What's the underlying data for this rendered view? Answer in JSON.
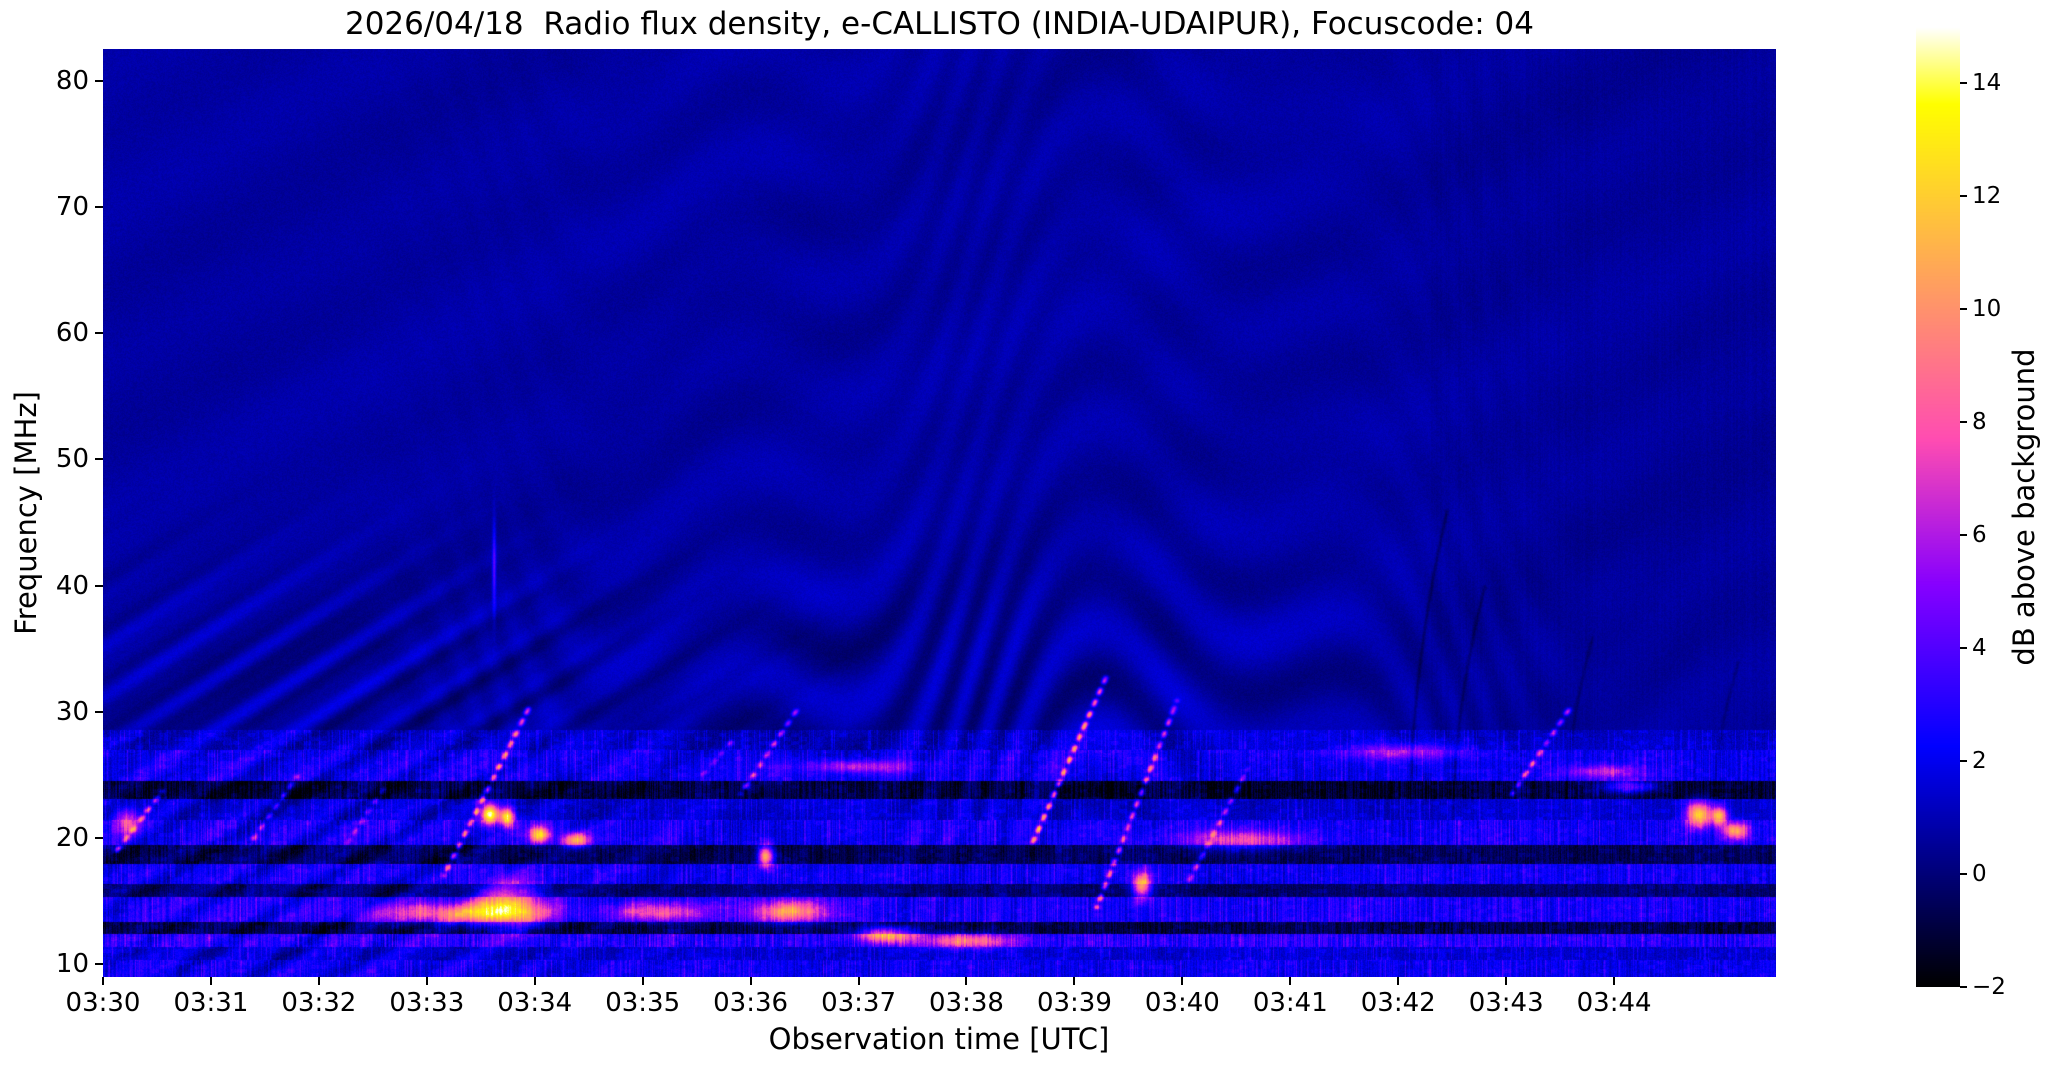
{
  "figure": {
    "background": "#ffffff",
    "text_color": "#000000"
  },
  "chart_data": {
    "type": "heatmap",
    "title": "2026/04/18  Radio flux density, e-CALLISTO (INDIA-UDAIPUR), Focuscode: 04",
    "xlabel": "Observation time [UTC]",
    "ylabel": "Frequency [MHz]",
    "colorbar_label": "dB above background",
    "x_range_minutes": [
      0,
      15.5
    ],
    "x_start_label": "03:30",
    "y_range_mhz": [
      9.0,
      82.5
    ],
    "grid": false,
    "legend": "colorbar-right",
    "x_ticks": [
      {
        "minute": 0,
        "label": "03:30"
      },
      {
        "minute": 1,
        "label": "03:31"
      },
      {
        "minute": 2,
        "label": "03:32"
      },
      {
        "minute": 3,
        "label": "03:33"
      },
      {
        "minute": 4,
        "label": "03:34"
      },
      {
        "minute": 5,
        "label": "03:35"
      },
      {
        "minute": 6,
        "label": "03:36"
      },
      {
        "minute": 7,
        "label": "03:37"
      },
      {
        "minute": 8,
        "label": "03:38"
      },
      {
        "minute": 9,
        "label": "03:39"
      },
      {
        "minute": 10,
        "label": "03:40"
      },
      {
        "minute": 11,
        "label": "03:41"
      },
      {
        "minute": 12,
        "label": "03:42"
      },
      {
        "minute": 13,
        "label": "03:43"
      },
      {
        "minute": 14,
        "label": "03:44"
      }
    ],
    "y_ticks": [
      {
        "mhz": 80,
        "label": "80"
      },
      {
        "mhz": 70,
        "label": "70"
      },
      {
        "mhz": 60,
        "label": "60"
      },
      {
        "mhz": 50,
        "label": "50"
      },
      {
        "mhz": 40,
        "label": "40"
      },
      {
        "mhz": 30,
        "label": "30"
      },
      {
        "mhz": 20,
        "label": "20"
      },
      {
        "mhz": 10,
        "label": "10"
      }
    ],
    "color_scale": {
      "colormap": "gnuplot2",
      "vmin": -2,
      "vmax": 15,
      "ticks": [
        {
          "db": -2,
          "label": "−2"
        },
        {
          "db": 0,
          "label": "0"
        },
        {
          "db": 2,
          "label": "2"
        },
        {
          "db": 4,
          "label": "4"
        },
        {
          "db": 6,
          "label": "6"
        },
        {
          "db": 8,
          "label": "8"
        },
        {
          "db": 10,
          "label": "10"
        },
        {
          "db": 12,
          "label": "12"
        },
        {
          "db": 14,
          "label": "14"
        }
      ]
    },
    "background_level_db": 0.7,
    "bands_mhz_db": [
      [
        27.0,
        28.6,
        0.55
      ],
      [
        24.6,
        27.0,
        1.35
      ],
      [
        23.1,
        24.6,
        -1.75
      ],
      [
        21.5,
        23.1,
        0.65
      ],
      [
        19.5,
        21.5,
        1.55
      ],
      [
        18.0,
        19.5,
        -1.25
      ],
      [
        16.4,
        18.0,
        1.45
      ],
      [
        15.4,
        16.4,
        -0.85
      ],
      [
        13.4,
        15.4,
        1.75
      ],
      [
        12.45,
        13.4,
        -1.55
      ],
      [
        11.45,
        12.45,
        2.1
      ],
      [
        10.4,
        11.45,
        0.7
      ],
      [
        9.0,
        10.4,
        1.35
      ]
    ],
    "bursts_t0_f0_t1_f1_db": [
      [
        0.12,
        19.0,
        0.55,
        23.8,
        5.5
      ],
      [
        1.35,
        19.5,
        1.8,
        25.0,
        4.0
      ],
      [
        2.25,
        19.5,
        2.6,
        24.0,
        3.2
      ],
      [
        3.15,
        17.0,
        3.95,
        30.5,
        7.5
      ],
      [
        5.55,
        25.0,
        5.85,
        28.0,
        3.0
      ],
      [
        5.9,
        23.5,
        6.45,
        30.5,
        5.0
      ],
      [
        8.6,
        19.5,
        9.3,
        33.0,
        8.5
      ],
      [
        9.2,
        14.5,
        9.95,
        31.0,
        7.0
      ],
      [
        10.05,
        16.5,
        10.6,
        25.5,
        4.5
      ],
      [
        13.05,
        23.5,
        13.6,
        30.5,
        5.5
      ]
    ],
    "blobs_t_f_sigt_sigf_db": [
      [
        3.58,
        21.9,
        0.055,
        0.55,
        13.5
      ],
      [
        3.74,
        21.7,
        0.05,
        0.5,
        12.5
      ],
      [
        4.04,
        20.3,
        0.07,
        0.5,
        10.0
      ],
      [
        4.38,
        19.9,
        0.09,
        0.4,
        8.5
      ],
      [
        3.75,
        14.8,
        0.22,
        1.3,
        8.0
      ],
      [
        3.3,
        14.1,
        0.55,
        0.55,
        7.0
      ],
      [
        5.15,
        14.2,
        0.3,
        0.5,
        5.5
      ],
      [
        6.14,
        18.6,
        0.05,
        0.6,
        11.0
      ],
      [
        6.35,
        14.2,
        0.25,
        0.6,
        7.5
      ],
      [
        7.25,
        12.4,
        0.18,
        0.45,
        8.5
      ],
      [
        7.0,
        25.7,
        0.35,
        0.35,
        4.5
      ],
      [
        8.0,
        11.9,
        0.3,
        0.4,
        6.0
      ],
      [
        9.62,
        16.3,
        0.06,
        0.7,
        10.0
      ],
      [
        10.55,
        19.9,
        0.4,
        0.5,
        5.0
      ],
      [
        12.05,
        26.9,
        0.4,
        0.45,
        3.8
      ],
      [
        14.15,
        24.1,
        0.18,
        0.35,
        5.0
      ],
      [
        13.9,
        25.3,
        0.25,
        0.35,
        4.0
      ],
      [
        14.78,
        21.9,
        0.08,
        0.7,
        11.0
      ],
      [
        14.97,
        21.8,
        0.05,
        0.5,
        10.0
      ],
      [
        15.12,
        20.6,
        0.08,
        0.45,
        8.5
      ],
      [
        0.22,
        21.3,
        0.08,
        0.7,
        6.0
      ],
      [
        3.62,
        41.5,
        0.012,
        2.5,
        3.5
      ]
    ],
    "arcs_t_flo_fhi_curve_db": [
      [
        12.1,
        20,
        46,
        0.35,
        -1.1
      ],
      [
        12.5,
        20,
        40,
        0.3,
        -1.0
      ],
      [
        13.55,
        21,
        36,
        0.25,
        -0.8
      ],
      [
        14.9,
        20,
        34,
        0.25,
        -0.7
      ]
    ],
    "fringes": {
      "left_diagonal": {
        "amp": 0.8,
        "t_center": 2.0,
        "t_sigma": 3.0,
        "f_cut": 32,
        "k": 0.16
      },
      "global_diagonal": {
        "amp": 0.13,
        "k": 0.05
      },
      "wavy_mid": {
        "amp": 0.85,
        "t_center": 8.3,
        "t_sigma": 4.2,
        "f_center": 31,
        "f_sigma": 11
      }
    }
  }
}
